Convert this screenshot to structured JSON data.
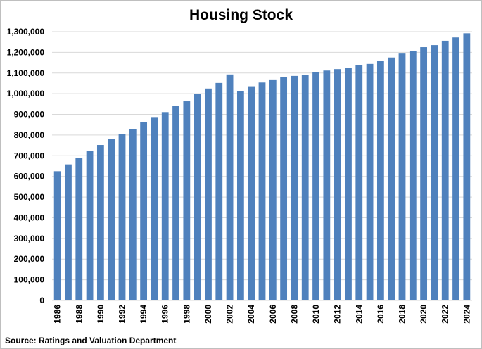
{
  "chart_data": {
    "type": "bar",
    "title": "Housing Stock",
    "source": "Source: Ratings and Valuation Department",
    "xlabel": "",
    "ylabel": "",
    "ylim": [
      0,
      1300000
    ],
    "yticks": [
      0,
      100000,
      200000,
      300000,
      400000,
      500000,
      600000,
      700000,
      800000,
      900000,
      1000000,
      1100000,
      1200000,
      1300000
    ],
    "ytick_labels": [
      "0",
      "100,000",
      "200,000",
      "300,000",
      "400,000",
      "500,000",
      "600,000",
      "700,000",
      "800,000",
      "900,000",
      "1,000,000",
      "1,100,000",
      "1,200,000",
      "1,300,000"
    ],
    "categories": [
      "1986",
      "1987",
      "1988",
      "1989",
      "1990",
      "1991",
      "1992",
      "1993",
      "1994",
      "1995",
      "1996",
      "1997",
      "1998",
      "1999",
      "2000",
      "2001",
      "2002",
      "2003",
      "2004",
      "2005",
      "2006",
      "2007",
      "2008",
      "2009",
      "2010",
      "2011",
      "2012",
      "2013",
      "2014",
      "2015",
      "2016",
      "2017",
      "2018",
      "2019",
      "2020",
      "2021",
      "2022",
      "2023",
      "2024"
    ],
    "xtick_labels": [
      "1986",
      "",
      "1988",
      "",
      "1990",
      "",
      "1992",
      "",
      "1994",
      "",
      "1996",
      "",
      "1998",
      "",
      "2000",
      "",
      "2002",
      "",
      "2004",
      "",
      "2006",
      "",
      "2008",
      "",
      "2010",
      "",
      "2012",
      "",
      "2014",
      "",
      "2016",
      "",
      "2018",
      "",
      "2020",
      "",
      "2022",
      "",
      "2024"
    ],
    "values": [
      625000,
      658000,
      690000,
      724000,
      752000,
      781000,
      806000,
      830000,
      864000,
      887000,
      911000,
      941000,
      963000,
      998000,
      1025000,
      1052000,
      1093000,
      1011000,
      1036000,
      1054000,
      1069000,
      1080000,
      1086000,
      1091000,
      1104000,
      1112000,
      1119000,
      1125000,
      1137000,
      1144000,
      1158000,
      1175000,
      1194000,
      1205000,
      1225000,
      1235000,
      1256000,
      1272000,
      1292000
    ],
    "bar_color": "#4F81BD",
    "grid": true,
    "legend": "none"
  }
}
